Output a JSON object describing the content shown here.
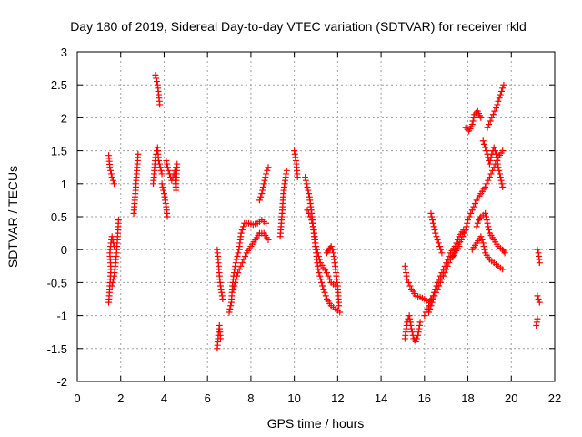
{
  "chart_data": {
    "type": "scatter",
    "title": "Day 180 of 2019, Sidereal Day-to-day VTEC variation (SDTVAR) for receiver rkld",
    "xlabel": "GPS time / hours",
    "ylabel": "SDTVAR / TECUs",
    "xlim": [
      0,
      22
    ],
    "ylim": [
      -2,
      3
    ],
    "xticks": [
      0,
      2,
      4,
      6,
      8,
      10,
      12,
      14,
      16,
      18,
      20,
      22
    ],
    "yticks": [
      -2,
      -1.5,
      -1,
      -0.5,
      0,
      0.5,
      1,
      1.5,
      2,
      2.5,
      3
    ],
    "xtick_labels": [
      "0",
      "2",
      "4",
      "6",
      "8",
      "10",
      "12",
      "14",
      "16",
      "18",
      "20",
      "22"
    ],
    "ytick_labels": [
      "-2",
      "-1.5",
      "-1",
      "-0.5",
      "0",
      "0.5",
      "1",
      "1.5",
      "2",
      "2.5",
      "3"
    ],
    "grid": true,
    "marker": "plus",
    "marker_color": "#ff0000",
    "series": [
      {
        "name": "SDTVAR",
        "tracks": [
          [
            [
              1.45,
              1.43
            ],
            [
              1.5,
              1.25
            ],
            [
              1.6,
              1.1
            ],
            [
              1.7,
              1.0
            ]
          ],
          [
            [
              1.45,
              -0.8
            ],
            [
              1.5,
              -0.55
            ],
            [
              1.55,
              -0.3
            ],
            [
              1.5,
              -0.05
            ],
            [
              1.55,
              0.1
            ],
            [
              1.6,
              0.2
            ],
            [
              1.7,
              0.05
            ]
          ],
          [
            [
              1.6,
              -0.55
            ],
            [
              1.7,
              -0.4
            ],
            [
              1.8,
              -0.1
            ],
            [
              1.85,
              0.15
            ],
            [
              1.9,
              0.45
            ]
          ],
          [
            [
              2.6,
              0.55
            ],
            [
              2.65,
              0.75
            ],
            [
              2.7,
              0.95
            ],
            [
              2.75,
              1.2
            ],
            [
              2.8,
              1.45
            ]
          ],
          [
            [
              3.6,
              2.65
            ],
            [
              3.7,
              2.5
            ],
            [
              3.8,
              2.2
            ]
          ],
          [
            [
              3.5,
              1.0
            ],
            [
              3.55,
              1.2
            ],
            [
              3.6,
              1.4
            ],
            [
              3.7,
              1.55
            ],
            [
              3.75,
              1.35
            ],
            [
              3.9,
              1.15
            ]
          ],
          [
            [
              3.9,
              1.0
            ],
            [
              4.0,
              0.85
            ],
            [
              4.1,
              0.65
            ],
            [
              4.15,
              0.5
            ]
          ],
          [
            [
              4.1,
              1.35
            ],
            [
              4.2,
              1.2
            ],
            [
              4.35,
              1.05
            ],
            [
              4.5,
              1.2
            ],
            [
              4.6,
              1.3
            ],
            [
              4.55,
              0.9
            ],
            [
              4.5,
              1.1
            ]
          ],
          [
            [
              6.45,
              0.0
            ],
            [
              6.5,
              -0.2
            ],
            [
              6.55,
              -0.4
            ],
            [
              6.6,
              -0.55
            ],
            [
              6.7,
              -0.75
            ]
          ],
          [
            [
              6.45,
              -1.5
            ],
            [
              6.5,
              -1.3
            ],
            [
              6.55,
              -1.15
            ],
            [
              6.6,
              -1.35
            ]
          ],
          [
            [
              7.0,
              -0.95
            ],
            [
              7.1,
              -0.8
            ],
            [
              7.15,
              -0.55
            ],
            [
              7.2,
              -0.4
            ],
            [
              7.3,
              -0.2
            ],
            [
              7.45,
              0.0
            ],
            [
              7.55,
              0.25
            ],
            [
              7.7,
              0.4
            ],
            [
              7.9,
              0.4
            ],
            [
              8.1,
              0.38
            ],
            [
              8.3,
              0.4
            ],
            [
              8.5,
              0.45
            ],
            [
              8.7,
              0.4
            ]
          ],
          [
            [
              7.2,
              -0.6
            ],
            [
              7.4,
              -0.35
            ],
            [
              7.6,
              -0.2
            ],
            [
              7.8,
              -0.05
            ],
            [
              8.0,
              0.05
            ],
            [
              8.2,
              0.15
            ],
            [
              8.4,
              0.25
            ],
            [
              8.6,
              0.25
            ],
            [
              8.8,
              0.15
            ]
          ],
          [
            [
              8.4,
              0.75
            ],
            [
              8.5,
              0.85
            ],
            [
              8.6,
              1.0
            ],
            [
              8.7,
              1.15
            ],
            [
              8.8,
              1.25
            ]
          ],
          [
            [
              9.35,
              0.2
            ],
            [
              9.4,
              0.4
            ],
            [
              9.45,
              0.6
            ],
            [
              9.5,
              0.85
            ],
            [
              9.55,
              1.0
            ],
            [
              9.6,
              1.1
            ],
            [
              9.65,
              1.2
            ]
          ],
          [
            [
              10.0,
              1.5
            ],
            [
              10.1,
              1.3
            ],
            [
              10.15,
              1.1
            ]
          ],
          [
            [
              10.5,
              1.1
            ],
            [
              10.6,
              0.95
            ],
            [
              10.7,
              0.8
            ],
            [
              10.8,
              0.55
            ],
            [
              10.9,
              0.25
            ],
            [
              11.0,
              -0.05
            ],
            [
              11.1,
              -0.3
            ],
            [
              11.3,
              -0.55
            ],
            [
              11.5,
              -0.75
            ],
            [
              11.7,
              -0.85
            ],
            [
              11.9,
              -0.9
            ],
            [
              12.1,
              -0.95
            ]
          ],
          [
            [
              10.6,
              0.6
            ],
            [
              10.8,
              0.45
            ],
            [
              10.9,
              0.3
            ],
            [
              11.0,
              0.05
            ],
            [
              11.2,
              -0.2
            ],
            [
              11.5,
              -0.35
            ],
            [
              11.7,
              -0.5
            ],
            [
              11.9,
              -0.55
            ]
          ],
          [
            [
              11.5,
              -0.05
            ],
            [
              11.6,
              0.0
            ],
            [
              11.7,
              0.05
            ],
            [
              11.8,
              -0.05
            ],
            [
              11.9,
              -0.3
            ],
            [
              12.0,
              -0.55
            ],
            [
              12.05,
              -0.85
            ]
          ],
          [
            [
              15.1,
              -1.35
            ],
            [
              15.2,
              -1.1
            ],
            [
              15.3,
              -1.0
            ],
            [
              15.4,
              -1.2
            ],
            [
              15.5,
              -1.35
            ],
            [
              15.6,
              -1.4
            ],
            [
              15.7,
              -1.3
            ],
            [
              15.8,
              -1.1
            ]
          ],
          [
            [
              15.1,
              -0.25
            ],
            [
              15.2,
              -0.45
            ],
            [
              15.4,
              -0.6
            ],
            [
              15.6,
              -0.7
            ],
            [
              15.8,
              -0.72
            ],
            [
              16.0,
              -0.75
            ],
            [
              16.2,
              -0.8
            ],
            [
              16.3,
              -0.75
            ]
          ],
          [
            [
              16.3,
              0.55
            ],
            [
              16.4,
              0.4
            ],
            [
              16.5,
              0.25
            ],
            [
              16.6,
              0.15
            ],
            [
              16.7,
              0.05
            ],
            [
              16.8,
              -0.05
            ]
          ],
          [
            [
              16.0,
              -1.0
            ],
            [
              16.2,
              -0.85
            ],
            [
              16.4,
              -0.7
            ],
            [
              16.6,
              -0.5
            ],
            [
              16.8,
              -0.35
            ],
            [
              17.0,
              -0.2
            ],
            [
              17.2,
              -0.05
            ],
            [
              17.4,
              0.05
            ],
            [
              17.6,
              0.2
            ],
            [
              17.8,
              0.3
            ]
          ],
          [
            [
              16.2,
              -0.95
            ],
            [
              16.4,
              -0.75
            ],
            [
              16.6,
              -0.6
            ],
            [
              16.8,
              -0.45
            ],
            [
              17.0,
              -0.3
            ],
            [
              17.2,
              -0.15
            ],
            [
              17.4,
              -0.05
            ],
            [
              17.6,
              0.05
            ]
          ],
          [
            [
              17.3,
              -0.1
            ],
            [
              17.5,
              0.05
            ],
            [
              17.7,
              0.15
            ],
            [
              17.9,
              0.3
            ],
            [
              18.0,
              0.45
            ],
            [
              18.2,
              0.6
            ],
            [
              18.4,
              0.75
            ],
            [
              18.6,
              0.85
            ],
            [
              18.8,
              0.95
            ],
            [
              19.0,
              1.1
            ],
            [
              19.2,
              1.25
            ],
            [
              19.4,
              1.4
            ],
            [
              19.6,
              1.5
            ]
          ],
          [
            [
              17.9,
              1.85
            ],
            [
              18.05,
              1.8
            ],
            [
              18.2,
              1.9
            ],
            [
              18.3,
              2.05
            ],
            [
              18.45,
              2.1
            ],
            [
              18.6,
              2.0
            ]
          ],
          [
            [
              18.4,
              0.35
            ],
            [
              18.5,
              0.45
            ],
            [
              18.6,
              0.5
            ],
            [
              18.8,
              0.55
            ],
            [
              18.9,
              0.4
            ],
            [
              19.0,
              0.25
            ],
            [
              19.2,
              0.15
            ],
            [
              19.4,
              0.05
            ],
            [
              19.6,
              0.0
            ],
            [
              19.7,
              -0.05
            ]
          ],
          [
            [
              18.2,
              0.0
            ],
            [
              18.4,
              0.1
            ],
            [
              18.6,
              0.2
            ],
            [
              18.7,
              0.1
            ],
            [
              18.8,
              -0.05
            ],
            [
              19.0,
              -0.15
            ],
            [
              19.2,
              -0.2
            ],
            [
              19.4,
              -0.25
            ],
            [
              19.6,
              -0.3
            ]
          ],
          [
            [
              18.7,
              1.65
            ],
            [
              18.8,
              1.55
            ],
            [
              18.9,
              1.45
            ],
            [
              19.0,
              1.3
            ],
            [
              19.1,
              1.45
            ],
            [
              19.2,
              1.55
            ],
            [
              19.3,
              1.45
            ],
            [
              19.4,
              1.25
            ],
            [
              19.5,
              1.1
            ],
            [
              19.6,
              0.95
            ]
          ],
          [
            [
              18.9,
              1.85
            ],
            [
              19.1,
              2.0
            ],
            [
              19.3,
              2.15
            ],
            [
              19.45,
              2.3
            ],
            [
              19.55,
              2.4
            ],
            [
              19.65,
              2.5
            ]
          ],
          [
            [
              21.2,
              0.0
            ],
            [
              21.25,
              -0.05
            ],
            [
              21.3,
              -0.2
            ]
          ],
          [
            [
              21.2,
              -0.7
            ],
            [
              21.25,
              -0.75
            ],
            [
              21.3,
              -0.8
            ]
          ],
          [
            [
              21.15,
              -1.15
            ],
            [
              21.2,
              -1.05
            ]
          ]
        ]
      }
    ]
  }
}
